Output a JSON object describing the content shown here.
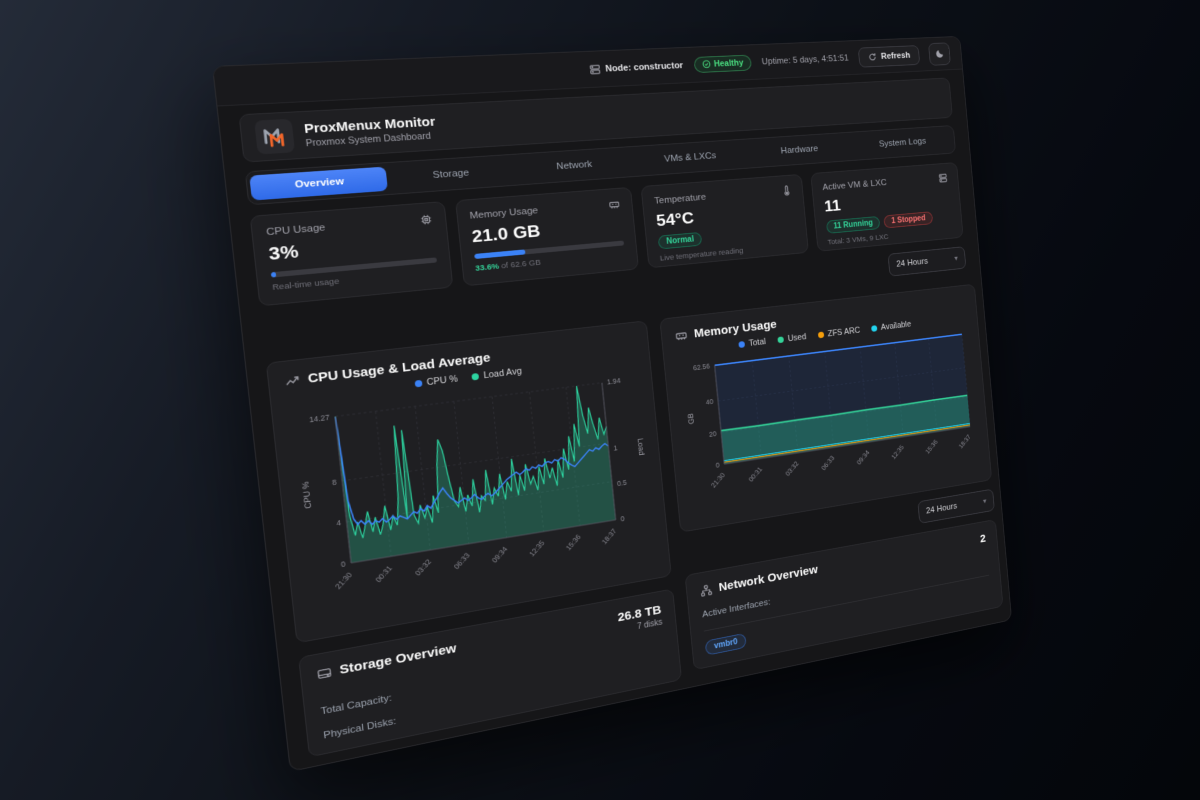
{
  "toolbar": {
    "node_label": "Node: constructor",
    "health_label": "Healthy",
    "uptime": "Uptime: 5 days, 4:51:51",
    "refresh_label": "Refresh"
  },
  "header": {
    "title": "ProxMenux Monitor",
    "subtitle": "Proxmox System Dashboard"
  },
  "tabs": [
    {
      "label": "Overview",
      "active": true
    },
    {
      "label": "Storage",
      "active": false
    },
    {
      "label": "Network",
      "active": false
    },
    {
      "label": "VMs & LXCs",
      "active": false
    },
    {
      "label": "Hardware",
      "active": false
    },
    {
      "label": "System Logs",
      "active": false
    }
  ],
  "stats": {
    "cpu": {
      "title": "CPU Usage",
      "value": "3%",
      "percent": 3,
      "caption": "Real-time usage"
    },
    "memory": {
      "title": "Memory Usage",
      "value": "21.0 GB",
      "percent": 33.6,
      "caption_highlight": "33.6%",
      "caption_rest": " of 62.6 GB"
    },
    "temperature": {
      "title": "Temperature",
      "value": "54°C",
      "badge": "Normal",
      "caption": "Live temperature reading"
    },
    "vms": {
      "title": "Active VM & LXC",
      "value": "11",
      "running_badge": "11 Running",
      "stopped_badge": "1 Stopped",
      "caption": "Total: 3 VMs, 9 LXC"
    }
  },
  "range_selector_top": {
    "label": "24 Hours"
  },
  "range_selector_bottom": {
    "label": "24 Hours"
  },
  "chart_data": [
    {
      "type": "line",
      "title": "CPU Usage & Load Average",
      "x_labels": [
        "21:30",
        "00:31",
        "03:32",
        "06:33",
        "09:34",
        "12:35",
        "15:36",
        "18:37"
      ],
      "y_left": {
        "label": "CPU %",
        "max": 14.27,
        "max_label": "14.27",
        "ticks": [
          0,
          4,
          8
        ]
      },
      "y_right": {
        "label": "Load",
        "max": 1.94,
        "max_label": "1.94",
        "ticks": [
          0,
          0.5,
          1
        ]
      },
      "series": [
        {
          "name": "CPU %",
          "color": "#3b82f6",
          "axis": "left",
          "area": false,
          "values": [
            14.2,
            6.0,
            4.2,
            3.6,
            3.9,
            3.5,
            3.8,
            3.4,
            3.7,
            3.5,
            3.8,
            3.4,
            3.6,
            3.9,
            3.5,
            3.8,
            3.6,
            3.4,
            3.7,
            4.0,
            3.8,
            4.2,
            3.9,
            4.4,
            4.1,
            4.6,
            5.0,
            5.5,
            5.9,
            5.3,
            4.8,
            4.5,
            4.2,
            4.4,
            4.6,
            4.3,
            4.5,
            4.8,
            4.4,
            4.2,
            4.5,
            4.7,
            4.4,
            4.6,
            4.9,
            5.2,
            5.5,
            5.8,
            6.0,
            6.2,
            6.4,
            6.1,
            6.3,
            6.6,
            6.4,
            6.7,
            6.5,
            6.8,
            6.6,
            6.9,
            7.0,
            6.8,
            7.1,
            6.9,
            7.2,
            7.0,
            6.6,
            6.3,
            6.1,
            6.4,
            6.7,
            7.0,
            7.3,
            7.6,
            7.4,
            7.7,
            7.5,
            7.8,
            8.0,
            7.7
          ]
        },
        {
          "name": "Load Avg",
          "color": "#2dd4a0",
          "axis": "right",
          "area": true,
          "values": [
            1.94,
            0.62,
            0.35,
            0.52,
            0.3,
            0.46,
            0.64,
            0.36,
            0.55,
            0.31,
            0.44,
            0.68,
            0.35,
            0.53,
            0.4,
            0.76,
            1.72,
            0.46,
            1.65,
            0.5,
            0.38,
            0.62,
            0.44,
            0.58,
            0.36,
            0.72,
            0.48,
            1.12,
            1.46,
            1.3,
            0.92,
            0.6,
            0.52,
            0.78,
            0.44,
            0.66,
            0.5,
            0.86,
            0.4,
            0.62,
            0.55,
            0.96,
            0.48,
            0.7,
            0.58,
            0.88,
            0.52,
            0.76,
            0.62,
            1.06,
            0.55,
            0.82,
            0.6,
            0.96,
            0.68,
            0.78,
            0.58,
            0.9,
            0.65,
            1.0,
            0.72,
            0.86,
            0.6,
            0.96,
            0.7,
            1.1,
            0.8,
            1.26,
            0.9,
            1.42,
            1.1,
            1.94,
            1.52,
            1.26,
            1.62,
            1.36,
            1.16,
            1.46,
            1.22,
            1.32
          ]
        }
      ]
    },
    {
      "type": "area",
      "title": "Memory Usage",
      "x_labels": [
        "21:30",
        "00:31",
        "03:32",
        "06:33",
        "09:34",
        "12:35",
        "15:36",
        "18:37"
      ],
      "y": {
        "label": "GB",
        "max": 62.56,
        "max_label": "62.56",
        "ticks": [
          0,
          20,
          40
        ]
      },
      "series": [
        {
          "name": "Total",
          "color": "#3b82f6",
          "area": false,
          "values": [
            62.56,
            62.56,
            62.56,
            62.56,
            62.56,
            62.56,
            62.56,
            62.56
          ]
        },
        {
          "name": "Used",
          "color": "#34d399",
          "area": true,
          "values": [
            21.2,
            21.0,
            21.1,
            21.0,
            21.2,
            21.1,
            21.3,
            21.2
          ]
        },
        {
          "name": "ZFS ARC",
          "color": "#f59e0b",
          "area": false,
          "values": [
            1.2,
            1.2,
            1.2,
            1.2,
            1.2,
            1.2,
            1.2,
            1.2
          ]
        },
        {
          "name": "Available",
          "color": "#22d3ee",
          "area": false,
          "values": [
            2.2,
            2.2,
            2.2,
            2.2,
            2.2,
            2.2,
            2.2,
            2.2
          ]
        }
      ]
    }
  ],
  "storage": {
    "title": "Storage Overview",
    "total_value": "26.8 TB",
    "disks_value": "7 disks",
    "rows": [
      {
        "label": "Total Capacity:"
      },
      {
        "label": "Physical Disks:"
      }
    ]
  },
  "network": {
    "title": "Network Overview",
    "count": "2",
    "active_label": "Active Interfaces:",
    "interface_badge": "vmbr0"
  },
  "colors": {
    "accent_blue": "#3b82f6",
    "green": "#34d399",
    "orange": "#f59e0b",
    "cyan": "#22d3ee",
    "red": "#f87171"
  }
}
